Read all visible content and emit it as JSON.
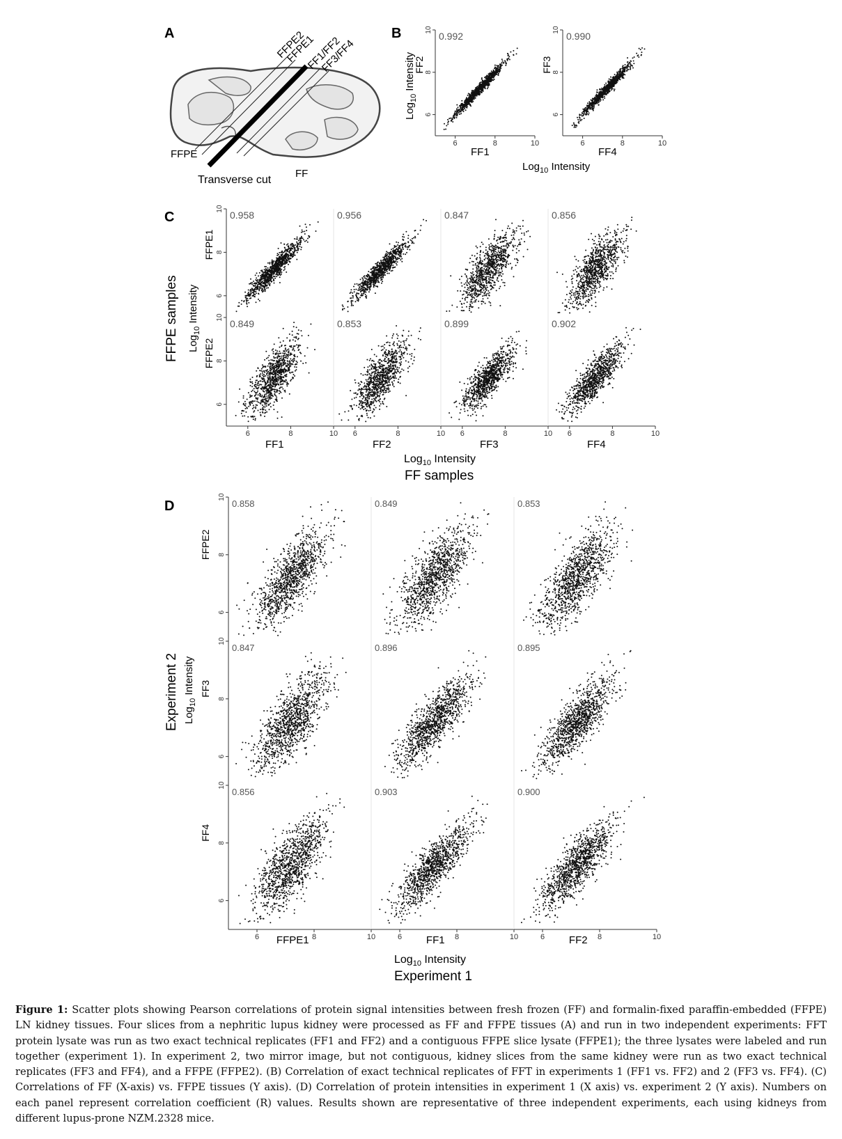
{
  "panel_letters": [
    "A",
    "B",
    "C",
    "D"
  ],
  "panel_a": {
    "labels_diagonal": [
      "FFPE2",
      "FFPE1",
      "FF1/FF2",
      "FF3/FF4"
    ],
    "label_ffpe": "FFPE",
    "label_ff": "FF",
    "label_cut": "Transverse cut"
  },
  "colors": {
    "points": "#111111",
    "axis": "#333333",
    "corr_text": "#555555"
  },
  "axis_common": {
    "range": [
      5,
      10
    ],
    "ticks": [
      "6",
      "8",
      "10"
    ],
    "log_label": "Log",
    "log_sub": "10",
    "log_suffix": " Intensity"
  },
  "panel_b": {
    "y_label": "Intensity",
    "x_label": "Log10 Intensity",
    "plots": [
      {
        "r": "0.992",
        "xname": "FF1",
        "yname": "FF2"
      },
      {
        "r": "0.990",
        "xname": "FF4",
        "yname": "FF3"
      }
    ]
  },
  "panel_c": {
    "group_y": "FFPE samples",
    "group_x": "FF samples",
    "rows": [
      "FFPE1",
      "FFPE2"
    ],
    "cols": [
      "FF1",
      "FF2",
      "FF3",
      "FF4"
    ],
    "r": [
      [
        "0.958",
        "0.956",
        "0.847",
        "0.856"
      ],
      [
        "0.849",
        "0.853",
        "0.899",
        "0.902"
      ]
    ]
  },
  "panel_d": {
    "group_y": "Experiment 2",
    "group_x": "Experiment 1",
    "rows": [
      "FFPE2",
      "FF3",
      "FF4"
    ],
    "cols": [
      "FFPE1",
      "FF1",
      "FF2"
    ],
    "r": [
      [
        "0.858",
        "0.849",
        "0.853"
      ],
      [
        "0.847",
        "0.896",
        "0.895"
      ],
      [
        "0.856",
        "0.903",
        "0.900"
      ]
    ]
  },
  "chart_data": [
    {
      "type": "scatter",
      "panel": "B",
      "x_series": "FF1",
      "y_series": "FF2",
      "r": 0.992,
      "xlim": [
        5,
        10
      ],
      "ylim": [
        5,
        10
      ]
    },
    {
      "type": "scatter",
      "panel": "B",
      "x_series": "FF4",
      "y_series": "FF3",
      "r": 0.99,
      "xlim": [
        5,
        10
      ],
      "ylim": [
        5,
        10
      ]
    },
    {
      "type": "scatter",
      "panel": "C",
      "grid": [
        2,
        4
      ],
      "rows": [
        "FFPE1",
        "FFPE2"
      ],
      "cols": [
        "FF1",
        "FF2",
        "FF3",
        "FF4"
      ],
      "r": [
        [
          0.958,
          0.956,
          0.847,
          0.856
        ],
        [
          0.849,
          0.853,
          0.899,
          0.902
        ]
      ],
      "xlim": [
        5,
        10
      ],
      "ylim": [
        5,
        10
      ]
    },
    {
      "type": "scatter",
      "panel": "D",
      "grid": [
        3,
        3
      ],
      "rows": [
        "FFPE2",
        "FF3",
        "FF4"
      ],
      "cols": [
        "FFPE1",
        "FF1",
        "FF2"
      ],
      "r": [
        [
          0.858,
          0.849,
          0.853
        ],
        [
          0.847,
          0.896,
          0.895
        ],
        [
          0.856,
          0.903,
          0.9
        ]
      ],
      "xlim": [
        5,
        10
      ],
      "ylim": [
        5,
        10
      ]
    }
  ],
  "caption": {
    "label": "Figure 1:",
    "text": "Scatter plots showing Pearson correlations of protein signal intensities between fresh frozen (FF) and formalin-fixed paraffin-embedded (FFPE) LN kidney tissues. Four slices from a nephritic lupus kidney were processed as FF and FFPE tissues (A) and run in two independent experiments: FFT protein lysate was run as two exact technical replicates (FF1 and FF2) and a contiguous FFPE slice lysate (FFPE1); the three lysates were labeled and run together (experiment 1). In experiment 2, two mirror image, but not contiguous, kidney slices from the same kidney were run as two exact technical replicates (FF3 and FF4), and a FFPE (FFPE2). (B) Correlation of exact technical replicates of FFT in experiments 1 (FF1 vs. FF2) and 2 (FF3 vs. FF4). (C) Correlations of FF (X-axis) vs. FFPE tissues (Y axis). (D) Correlation of protein intensities in experiment 1 (X axis) vs. experiment 2 (Y axis). Numbers on each panel represent correlation coefficient (R) values. Results shown are representative of three independent experiments, each using kidneys from different lupus-prone NZM.2328 mice."
  }
}
